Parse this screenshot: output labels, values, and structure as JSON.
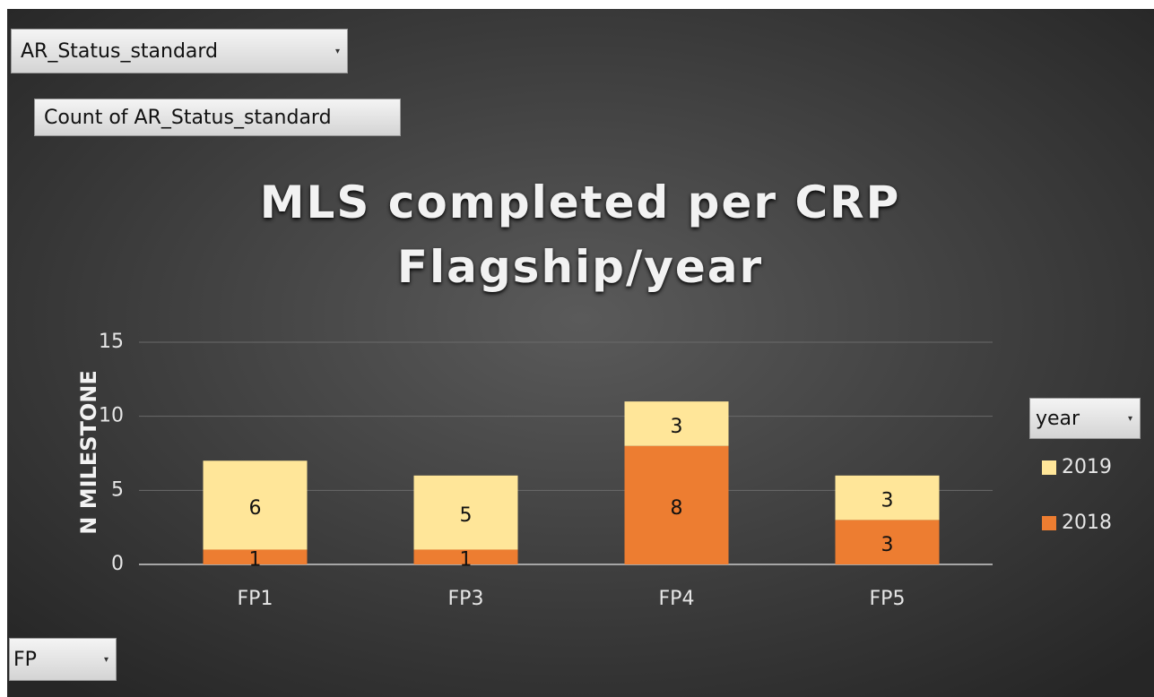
{
  "pivot_buttons": {
    "report_filter": "AR_Status_standard",
    "values_field": "Count of AR_Status_standard",
    "legend_field": "year",
    "axis_field": "FP"
  },
  "chart_data": {
    "type": "stacked_bar",
    "title": "MLS completed per CRP Flagship/year",
    "y_label": "N MILESTONE",
    "categories": [
      "FP1",
      "FP3",
      "FP4",
      "FP5"
    ],
    "series": [
      {
        "name": "2018",
        "color": "#ed7d31",
        "values": [
          1,
          1,
          8,
          3
        ]
      },
      {
        "name": "2019",
        "color": "#ffe699",
        "values": [
          6,
          5,
          3,
          3
        ]
      }
    ],
    "ylim": [
      0,
      15
    ],
    "yticks": [
      0,
      5,
      10,
      15
    ],
    "grid": true,
    "legend": "right"
  }
}
